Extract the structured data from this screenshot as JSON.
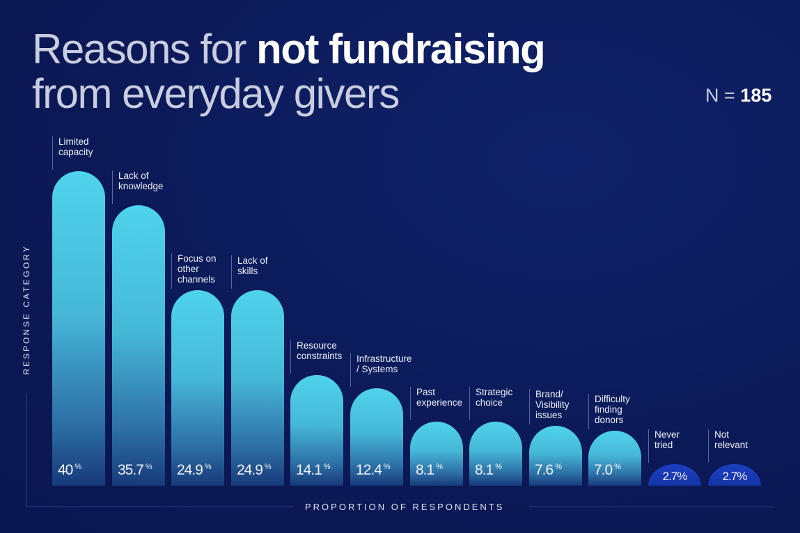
{
  "chart_data": {
    "type": "bar",
    "title_light": "Reasons for",
    "title_bold": "not fundraising",
    "title_line2": "from everyday givers",
    "n_label": "N =",
    "n_value": "185",
    "xlabel": "PROPORTION OF RESPONDENTS",
    "ylabel": "RESPONSE CATEGORY",
    "unit": "%",
    "categories": [
      "Limited capacity",
      "Lack of knowledge",
      "Focus on other channels",
      "Lack of skills",
      "Resource constraints",
      "Infrastructure / Systems",
      "Past experience",
      "Strategic choice",
      "Brand/ Visibility issues",
      "Difficulty finding donors",
      "Never tried",
      "Not relevant"
    ],
    "label_lines": [
      [
        "Limited",
        "capacity"
      ],
      [
        "Lack of",
        "knowledge"
      ],
      [
        "Focus on",
        "other",
        "channels"
      ],
      [
        "Lack of",
        "skills"
      ],
      [
        "Resource",
        "constraints"
      ],
      [
        "Infrastructure",
        "/ Systems"
      ],
      [
        "Past",
        "experience"
      ],
      [
        "Strategic",
        "choice"
      ],
      [
        "Brand/",
        "Visibility",
        "issues"
      ],
      [
        "Difficulty",
        "finding",
        "donors"
      ],
      [
        "Never",
        "tried"
      ],
      [
        "Not",
        "relevant"
      ]
    ],
    "values": [
      40,
      35.7,
      24.9,
      24.9,
      14.1,
      12.4,
      8.1,
      8.1,
      7.6,
      7.0,
      2.7,
      2.7
    ],
    "value_labels": [
      "40",
      "35.7",
      "24.9",
      "24.9",
      "14.1",
      "12.4",
      "8.1",
      "8.1",
      "7.6",
      "7.0",
      "2.7%",
      "2.7%"
    ],
    "ylim": [
      0,
      40
    ],
    "colors": {
      "bar": "#4fd3ec",
      "small_bar": "#1c3fc0",
      "background": "#0b1956"
    }
  }
}
